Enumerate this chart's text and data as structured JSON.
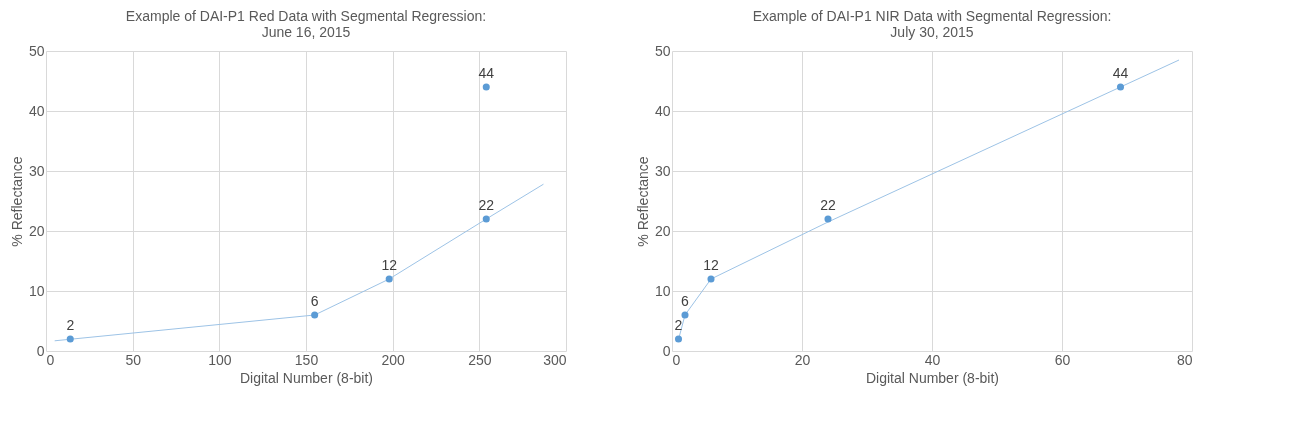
{
  "chart_data": [
    {
      "type": "scatter",
      "title": "Example of DAI-P1 Red Data with Segmental Regression:\nJune 16, 2015",
      "xlabel": "Digital Number (8-bit)",
      "ylabel": "% Reflectance",
      "xlim": [
        0,
        300
      ],
      "xticks": [
        0,
        50,
        100,
        150,
        200,
        250,
        300
      ],
      "ylim": [
        0,
        50
      ],
      "yticks": [
        0,
        10,
        20,
        30,
        40,
        50
      ],
      "grid": true,
      "series": [
        {
          "type": "line",
          "color": "#9dc3e6",
          "x": [
            5,
            155,
            198,
            254,
            287
          ],
          "values": [
            1.7,
            6,
            12,
            22,
            27.8
          ],
          "marker": "none",
          "line_style": "solid"
        },
        {
          "color": "#5b9bd5",
          "x": [
            14,
            155,
            198,
            254,
            254
          ],
          "values": [
            2,
            6,
            12,
            22,
            44
          ],
          "marker": "circle",
          "value_labels": [
            "2",
            "6",
            "12",
            "22",
            "44"
          ]
        }
      ]
    },
    {
      "type": "scatter",
      "title": "Example of DAI-P1 NIR Data with Segmental Regression:\nJuly 30, 2015",
      "xlabel": "Digital Number (8-bit)",
      "ylabel": "% Reflectance",
      "xlim": [
        0,
        80
      ],
      "xticks": [
        0,
        20,
        40,
        60,
        80
      ],
      "ylim": [
        0,
        50
      ],
      "yticks": [
        0,
        10,
        20,
        30,
        40,
        50
      ],
      "grid": true,
      "series": [
        {
          "type": "line",
          "color": "#9dc3e6",
          "x": [
            0.9,
            2,
            6,
            24,
            69,
            78
          ],
          "values": [
            1.5,
            6,
            12,
            21.5,
            44,
            48.5
          ],
          "marker": "none",
          "line_style": "solid"
        },
        {
          "color": "#5b9bd5",
          "x": [
            1,
            2,
            6,
            24,
            69
          ],
          "values": [
            2,
            6,
            12,
            22,
            44
          ],
          "marker": "circle",
          "value_labels": [
            "2",
            "6",
            "12",
            "22",
            "44"
          ]
        }
      ]
    }
  ]
}
